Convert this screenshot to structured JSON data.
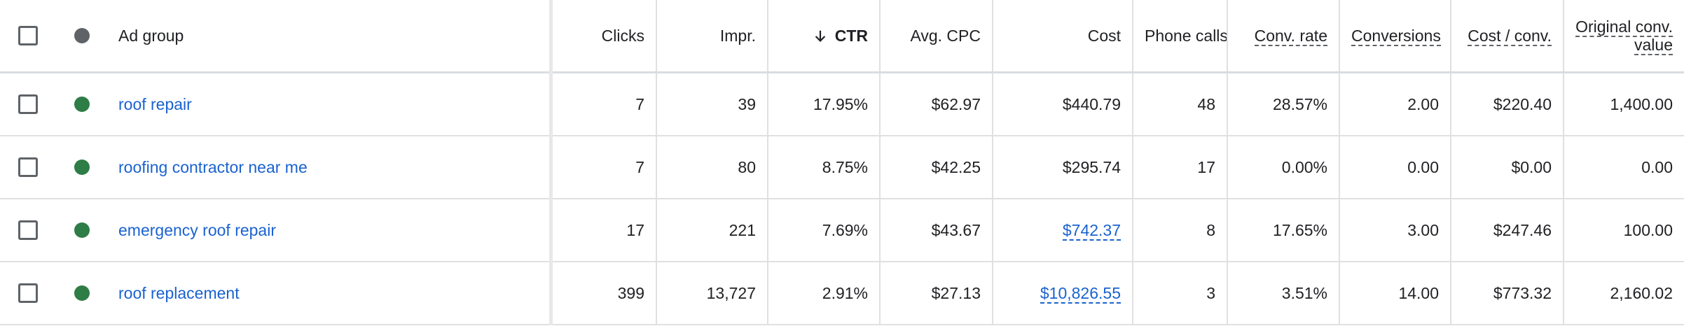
{
  "table": {
    "columns": [
      "Ad group",
      "Clicks",
      "Impr.",
      "CTR",
      "Avg. CPC",
      "Cost",
      "Phone calls",
      "Conv. rate",
      "Conversions",
      "Cost / conv.",
      "Original conv. value"
    ],
    "rows": [
      [
        "roof repair",
        "7",
        "39",
        "17.95%",
        "$62.97",
        "$440.79",
        "48",
        "28.57%",
        "2.00",
        "$220.40",
        "1,400.00"
      ],
      [
        "roofing contractor near me",
        "7",
        "80",
        "8.75%",
        "$42.25",
        "$295.74",
        "17",
        "0.00%",
        "0.00",
        "$0.00",
        "0.00"
      ],
      [
        "emergency roof repair",
        "17",
        "221",
        "7.69%",
        "$43.67",
        "$742.37",
        "8",
        "17.65%",
        "3.00",
        "$247.46",
        "100.00"
      ],
      [
        "roof replacement",
        "399",
        "13,727",
        "2.91%",
        "$27.13",
        "$10,826.55",
        "3",
        "3.51%",
        "14.00",
        "$773.32",
        "2,160.02"
      ]
    ]
  }
}
